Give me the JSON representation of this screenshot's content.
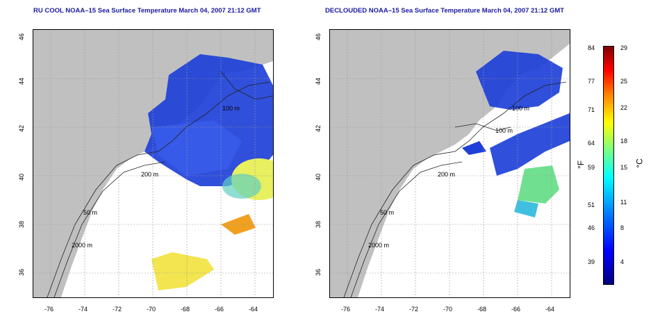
{
  "left_map": {
    "title": "RU COOL NOAA–15 Sea Surface Temperature March 04, 2007 21:12 GMT",
    "x_ticks": [
      "-76",
      "-74",
      "-72",
      "-70",
      "-68",
      "-66",
      "-64"
    ],
    "y_ticks": [
      "46",
      "44",
      "42",
      "40",
      "38",
      "36"
    ],
    "contour_labels": [
      "100 m",
      "200 m",
      "50 m",
      "2000 m"
    ]
  },
  "right_map": {
    "title": "DECLOUDED NOAA–15 Sea Surface Temperature March 04, 2007 21:12 GMT",
    "x_ticks": [
      "-76",
      "-74",
      "-72",
      "-70",
      "-68",
      "-66",
      "-64"
    ],
    "y_ticks": [
      "46",
      "44",
      "42",
      "40",
      "38",
      "36"
    ],
    "contour_labels": [
      "100 m",
      "100 m",
      "200 m",
      "50 m",
      "2000 m"
    ]
  },
  "colorbar": {
    "fahrenheit_ticks": [
      "84",
      "77",
      "71",
      "64",
      "59",
      "51",
      "46",
      "39"
    ],
    "celsius_ticks": [
      "29",
      "25",
      "22",
      "18",
      "15",
      "11",
      "8",
      "4"
    ],
    "unit_f": "°F",
    "unit_c": "°C",
    "colors": [
      "#00007f",
      "#0000ff",
      "#007fff",
      "#00ffff",
      "#7fff7f",
      "#ffff00",
      "#ff7f00",
      "#ff0000",
      "#7f0000"
    ]
  },
  "map_colors": {
    "land": "#c0c0c0",
    "ocean": "#ffffff",
    "cold_water": "#1e40d8",
    "warm_water": "#f0e030"
  }
}
